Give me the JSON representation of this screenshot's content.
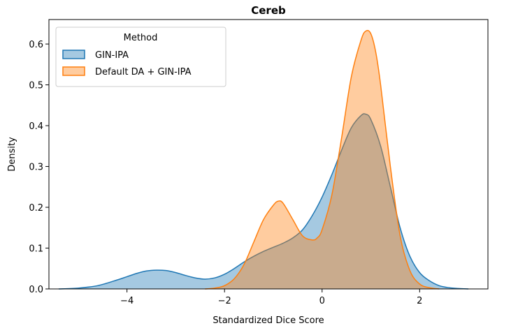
{
  "chart_data": {
    "type": "area",
    "title": "Cereb",
    "xlabel": "Standardized Dice Score",
    "ylabel": "Density",
    "xlim": [
      -5.6,
      3.4
    ],
    "ylim": [
      0,
      0.66
    ],
    "x_ticks": [
      -4,
      -2,
      0,
      2
    ],
    "x_tick_labels": [
      "−4",
      "−2",
      "0",
      "2"
    ],
    "y_ticks": [
      0.0,
      0.1,
      0.2,
      0.3,
      0.4,
      0.5,
      0.6
    ],
    "y_tick_labels": [
      "0.0",
      "0.1",
      "0.2",
      "0.3",
      "0.4",
      "0.5",
      "0.6"
    ],
    "grid": false,
    "legend": {
      "title": "Method",
      "placement": "top-left"
    },
    "fill_opacity": 0.4,
    "series": [
      {
        "name": "GIN-IPA",
        "color": "#1f77b4",
        "x": [
          -5.4,
          -5.0,
          -4.6,
          -4.2,
          -4.0,
          -3.8,
          -3.6,
          -3.4,
          -3.2,
          -3.0,
          -2.8,
          -2.6,
          -2.4,
          -2.2,
          -2.0,
          -1.8,
          -1.6,
          -1.4,
          -1.2,
          -1.0,
          -0.8,
          -0.6,
          -0.4,
          -0.2,
          0.0,
          0.2,
          0.4,
          0.6,
          0.8,
          0.9,
          1.0,
          1.2,
          1.4,
          1.6,
          1.8,
          2.0,
          2.2,
          2.4,
          2.6,
          2.8,
          3.0
        ],
        "y": [
          0.0,
          0.002,
          0.008,
          0.022,
          0.03,
          0.038,
          0.044,
          0.046,
          0.045,
          0.04,
          0.033,
          0.027,
          0.024,
          0.027,
          0.036,
          0.05,
          0.066,
          0.08,
          0.092,
          0.102,
          0.112,
          0.125,
          0.145,
          0.18,
          0.225,
          0.28,
          0.34,
          0.395,
          0.425,
          0.428,
          0.415,
          0.35,
          0.25,
          0.15,
          0.08,
          0.04,
          0.02,
          0.008,
          0.003,
          0.001,
          0.0
        ]
      },
      {
        "name": "Default DA + GIN-IPA",
        "color": "#ff7f0e",
        "x": [
          -2.4,
          -2.2,
          -2.0,
          -1.8,
          -1.6,
          -1.4,
          -1.2,
          -1.0,
          -0.9,
          -0.8,
          -0.6,
          -0.4,
          -0.2,
          -0.1,
          0.0,
          0.2,
          0.4,
          0.6,
          0.8,
          0.9,
          1.0,
          1.1,
          1.2,
          1.4,
          1.6,
          1.8,
          2.0,
          2.2,
          2.4
        ],
        "y": [
          0.0,
          0.002,
          0.008,
          0.025,
          0.06,
          0.115,
          0.17,
          0.205,
          0.215,
          0.21,
          0.17,
          0.13,
          0.12,
          0.125,
          0.145,
          0.23,
          0.37,
          0.52,
          0.61,
          0.632,
          0.625,
          0.58,
          0.5,
          0.3,
          0.13,
          0.045,
          0.012,
          0.003,
          0.0
        ]
      }
    ]
  }
}
